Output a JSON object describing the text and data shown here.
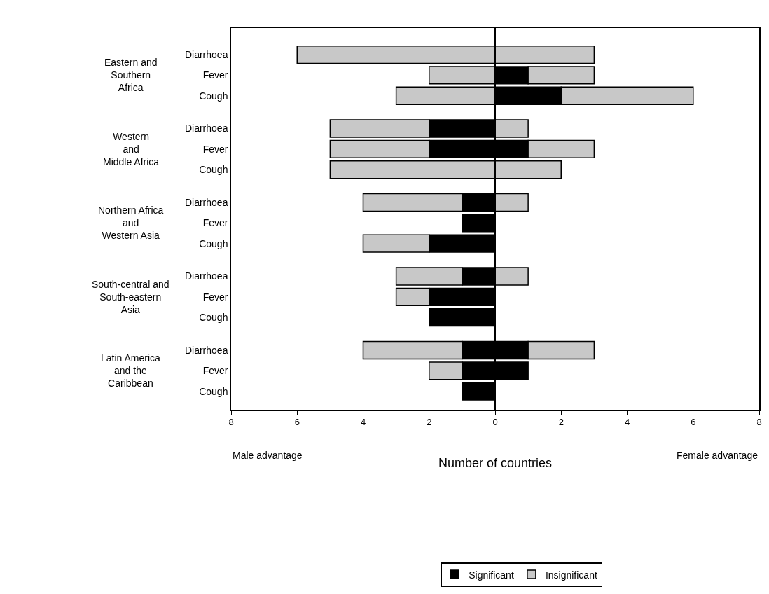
{
  "chart_data": {
    "type": "bar",
    "orientation": "horizontal",
    "stacked": true,
    "categories": [
      "Diarrhoea",
      "Fever",
      "Cough",
      "Diarrhoea",
      "Fever",
      "Cough",
      "Diarrhoea",
      "Fever",
      "Cough",
      "Diarrhoea",
      "Fever",
      "Cough",
      "Diarrhoea",
      "Fever",
      "Cough"
    ],
    "series": [
      {
        "name": "Significant",
        "color": "#000000",
        "values": [
          null,
          null,
          null,
          -2,
          -2,
          null,
          -1,
          -1,
          -2,
          -1,
          -2,
          -2,
          -1,
          -1,
          -1
        ]
      },
      {
        "name": "Insignificant",
        "color": "#c8c8c8",
        "values": [
          -6,
          -2,
          -3,
          -3,
          -3,
          -5,
          -3,
          null,
          -2,
          -2,
          -1,
          null,
          -3,
          -1,
          null
        ]
      },
      {
        "color": "#000000",
        "values": [
          null,
          1,
          2,
          null,
          1,
          null,
          null,
          null,
          null,
          null,
          null,
          null,
          1,
          1,
          null
        ]
      },
      {
        "color": "#c8c8c8",
        "values": [
          3,
          2,
          4,
          1,
          2,
          2,
          1,
          null,
          null,
          1,
          null,
          null,
          2,
          null,
          null
        ]
      }
    ],
    "xlabel": "Number of countries",
    "xlim": [
      -8,
      8
    ],
    "xticks": [
      {
        "value": -8,
        "label": "8"
      },
      {
        "value": -6,
        "label": "6"
      },
      {
        "value": -4,
        "label": "4"
      },
      {
        "value": -2,
        "label": "2"
      },
      0,
      2,
      4,
      6,
      8
    ],
    "annotations": [
      "Eastern and\nSouthern\nAfrica",
      "Western\nand\nMiddle Africa",
      "Northern Africa\nand\nWestern Asia",
      "South-central and\nSouth-eastern\nAsia",
      "Latin America\nand the\nCaribbean",
      "Male advantage",
      "Female advantage"
    ],
    "ref_lines": [
      {
        "axis": "x",
        "value": 0,
        "color": "#000000"
      }
    ],
    "legend": "bottom"
  }
}
